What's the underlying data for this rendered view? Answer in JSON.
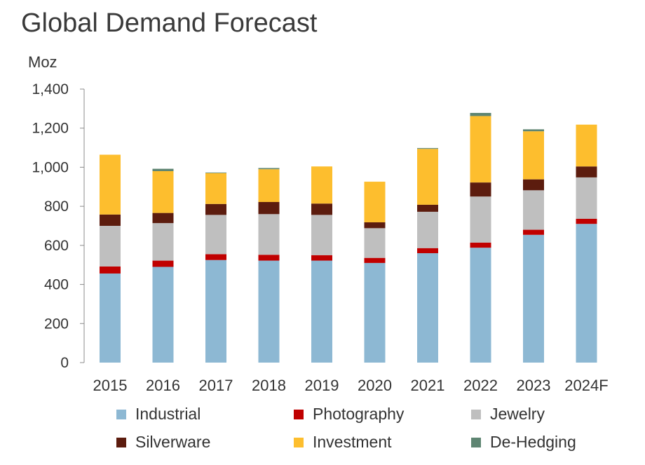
{
  "chart_data": {
    "type": "bar",
    "stacked": true,
    "title": "Global Demand Forecast",
    "ylabel": "Moz",
    "ylim": [
      0,
      1400
    ],
    "yticks": [
      0,
      200,
      400,
      600,
      800,
      1000,
      1200,
      1400
    ],
    "ytick_labels": [
      "0",
      "200",
      "400",
      "600",
      "800",
      "1,000",
      "1,200",
      "1,400"
    ],
    "categories": [
      "2015",
      "2016",
      "2017",
      "2018",
      "2019",
      "2020",
      "2021",
      "2022",
      "2023",
      "2024F"
    ],
    "grid": false,
    "legend_position": "bottom",
    "series": [
      {
        "name": "Industrial",
        "color": "#8DB8D3",
        "values": [
          456,
          490,
          525,
          522,
          522,
          510,
          560,
          588,
          654,
          710
        ]
      },
      {
        "name": "Photography",
        "color": "#C00000",
        "values": [
          36,
          32,
          30,
          30,
          28,
          26,
          26,
          26,
          26,
          26
        ]
      },
      {
        "name": "Jewelry",
        "color": "#BFBFBF",
        "values": [
          208,
          192,
          201,
          208,
          206,
          152,
          186,
          236,
          202,
          212
        ]
      },
      {
        "name": "Silverware",
        "color": "#5C1C0E",
        "values": [
          58,
          52,
          56,
          62,
          58,
          30,
          36,
          72,
          56,
          56
        ]
      },
      {
        "name": "Investment",
        "color": "#FDBE2E",
        "values": [
          306,
          214,
          158,
          168,
          190,
          208,
          286,
          340,
          246,
          214
        ]
      },
      {
        "name": "De-Hedging",
        "color": "#5E8572",
        "values": [
          0,
          12,
          3,
          6,
          0,
          0,
          4,
          16,
          10,
          0
        ]
      }
    ]
  }
}
